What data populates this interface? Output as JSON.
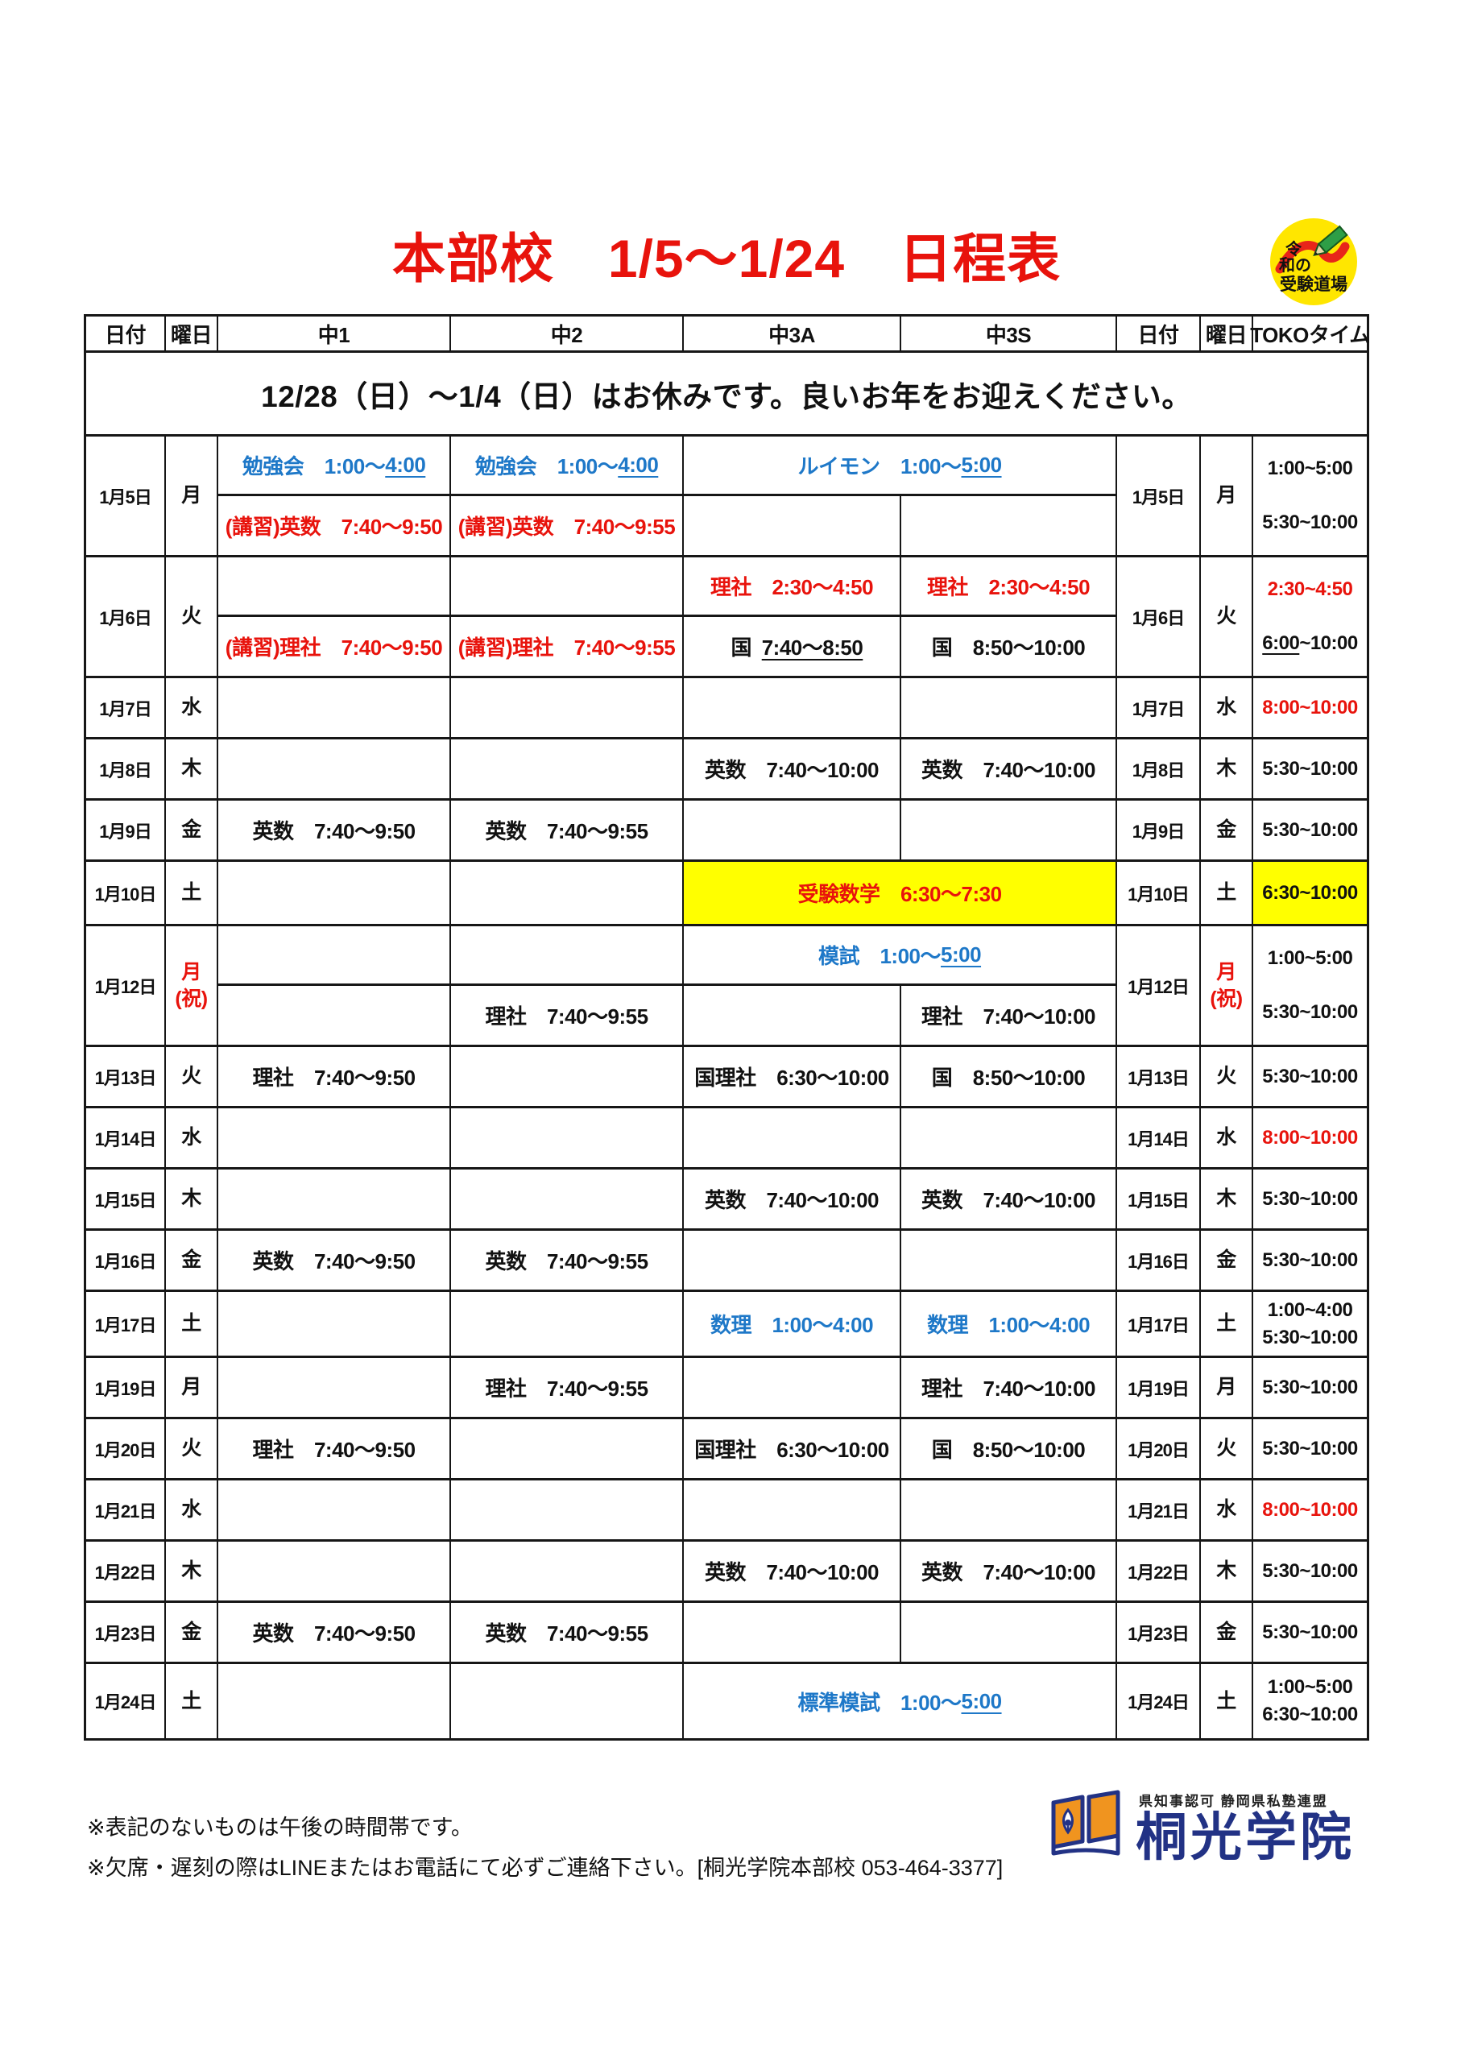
{
  "page_title": "本部校　1/5～1/24　日程表",
  "badge": {
    "line1": "令",
    "line2": "和の",
    "line3": "受験道場"
  },
  "table": {
    "headers": [
      "日付",
      "曜日",
      "中1",
      "中2",
      "中3A",
      "中3S",
      "日付",
      "曜日",
      "TOKOタイム"
    ],
    "notice": "12/28（日）～1/4（日）はお休みです。良いお年をお迎えください。",
    "rows": [
      {
        "date": "1月5日",
        "day": "月",
        "h": 150,
        "double": true,
        "top": {
          "c1": {
            "t": "勉強会　1:00～[4:00]",
            "c": "blue"
          },
          "c2": {
            "t": "勉強会　1:00～[4:00]",
            "c": "blue"
          },
          "m3": {
            "t": "ルイモン　1:00～[5:00]",
            "c": "blue"
          }
        },
        "bottom": {
          "c1": {
            "t": "(講習)英数　7:40～9:50",
            "c": "red"
          },
          "c2": {
            "t": "(講習)英数　7:40～9:55",
            "c": "red"
          },
          "c3a": null,
          "c3s": null
        },
        "toko": {
          "spread": true,
          "lines": [
            {
              "t": "1:00~5:00"
            },
            {
              "t": "5:30~10:00"
            }
          ]
        }
      },
      {
        "date": "1月6日",
        "day": "火",
        "h": 150,
        "double": true,
        "top": {
          "c1": null,
          "c2": null,
          "c3a": {
            "t": "理社　2:30～4:50",
            "c": "red"
          },
          "c3s": {
            "t": "理社　2:30～4:50",
            "c": "red"
          }
        },
        "bottom": {
          "c1": {
            "t": "(講習)理社　7:40～9:50",
            "c": "red"
          },
          "c2": {
            "t": "(講習)理社　7:40～9:55",
            "c": "red"
          },
          "c3a": {
            "t": "国　[7:40～8:50]"
          },
          "c3s": {
            "t": "国　8:50～10:00"
          }
        },
        "toko": {
          "spread": true,
          "lines": [
            {
              "t": "2:30~4:50",
              "c": "red"
            },
            {
              "t": "[6:00]~10:00"
            }
          ]
        }
      },
      {
        "date": "1月7日",
        "day": "水",
        "h": 76,
        "cells": {},
        "toko": {
          "lines": [
            {
              "t": "8:00~10:00",
              "c": "red"
            }
          ]
        }
      },
      {
        "date": "1月8日",
        "day": "木",
        "h": 76,
        "cells": {
          "c3a": {
            "t": "英数　7:40～10:00"
          },
          "c3s": {
            "t": "英数　7:40～10:00"
          }
        },
        "toko": {
          "lines": [
            {
              "t": "5:30~10:00"
            }
          ]
        }
      },
      {
        "date": "1月9日",
        "day": "金",
        "h": 76,
        "cells": {
          "c1": {
            "t": "英数　7:40～9:50"
          },
          "c2": {
            "t": "英数　7:40～9:55"
          }
        },
        "toko": {
          "lines": [
            {
              "t": "5:30~10:00"
            }
          ]
        }
      },
      {
        "date": "1月10日",
        "day": "土",
        "h": 80,
        "cells": {
          "m3": {
            "t": "受験数学　6:30～7:30",
            "c": "red",
            "bg": "yellow"
          }
        },
        "toko": {
          "bg": "yellow",
          "lines": [
            {
              "t": "6:30~10:00"
            }
          ]
        }
      },
      {
        "date": "1月12日",
        "day": "月",
        "dayNote": "(祝)",
        "dayRed": true,
        "h": 150,
        "double": true,
        "top": {
          "c1": null,
          "c2": null,
          "m3": {
            "t": "模試　1:00～[5:00]",
            "c": "blue"
          }
        },
        "bottom": {
          "c1": null,
          "c2": {
            "t": "理社　7:40～9:55"
          },
          "c3a": null,
          "c3s": {
            "t": "理社　7:40～10:00"
          }
        },
        "toko": {
          "spread": true,
          "lines": [
            {
              "t": "1:00~5:00"
            },
            {
              "t": "5:30~10:00"
            }
          ]
        }
      },
      {
        "date": "1月13日",
        "day": "火",
        "h": 76,
        "cells": {
          "c1": {
            "t": "理社　7:40～9:50"
          },
          "c3a": {
            "t": "国理社　6:30～10:00"
          },
          "c3s": {
            "t": "国　8:50～10:00"
          }
        },
        "toko": {
          "lines": [
            {
              "t": "5:30~10:00"
            }
          ]
        }
      },
      {
        "date": "1月14日",
        "day": "水",
        "h": 76,
        "cells": {},
        "toko": {
          "lines": [
            {
              "t": "8:00~10:00",
              "c": "red"
            }
          ]
        }
      },
      {
        "date": "1月15日",
        "day": "木",
        "h": 76,
        "cells": {
          "c3a": {
            "t": "英数　7:40～10:00"
          },
          "c3s": {
            "t": "英数　7:40～10:00"
          }
        },
        "toko": {
          "lines": [
            {
              "t": "5:30~10:00"
            }
          ]
        }
      },
      {
        "date": "1月16日",
        "day": "金",
        "h": 76,
        "cells": {
          "c1": {
            "t": "英数　7:40～9:50"
          },
          "c2": {
            "t": "英数　7:40～9:55"
          }
        },
        "toko": {
          "lines": [
            {
              "t": "5:30~10:00"
            }
          ]
        }
      },
      {
        "date": "1月17日",
        "day": "土",
        "h": 82,
        "cells": {
          "c3a": {
            "t": "数理　1:00～4:00",
            "c": "blue"
          },
          "c3s": {
            "t": "数理　1:00～4:00",
            "c": "blue"
          }
        },
        "toko": {
          "lines": [
            {
              "t": "1:00~4:00"
            },
            {
              "t": "5:30~10:00"
            }
          ]
        }
      },
      {
        "date": "1月19日",
        "day": "月",
        "h": 76,
        "cells": {
          "c2": {
            "t": "理社　7:40～9:55"
          },
          "c3s": {
            "t": "理社　7:40～10:00"
          }
        },
        "toko": {
          "lines": [
            {
              "t": "5:30~10:00"
            }
          ]
        }
      },
      {
        "date": "1月20日",
        "day": "火",
        "h": 76,
        "cells": {
          "c1": {
            "t": "理社　7:40～9:50"
          },
          "c3a": {
            "t": "国理社　6:30～10:00"
          },
          "c3s": {
            "t": "国　8:50～10:00"
          }
        },
        "toko": {
          "lines": [
            {
              "t": "5:30~10:00"
            }
          ]
        }
      },
      {
        "date": "1月21日",
        "day": "水",
        "h": 76,
        "cells": {},
        "toko": {
          "lines": [
            {
              "t": "8:00~10:00",
              "c": "red"
            }
          ]
        }
      },
      {
        "date": "1月22日",
        "day": "木",
        "h": 76,
        "cells": {
          "c3a": {
            "t": "英数　7:40～10:00"
          },
          "c3s": {
            "t": "英数　7:40～10:00"
          }
        },
        "toko": {
          "lines": [
            {
              "t": "5:30~10:00"
            }
          ]
        }
      },
      {
        "date": "1月23日",
        "day": "金",
        "h": 76,
        "cells": {
          "c1": {
            "t": "英数　7:40～9:50"
          },
          "c2": {
            "t": "英数　7:40～9:55"
          }
        },
        "toko": {
          "lines": [
            {
              "t": "5:30~10:00"
            }
          ]
        }
      },
      {
        "date": "1月24日",
        "day": "土",
        "h": 92,
        "cells": {
          "m3": {
            "t": "標準模試　1:00～[5:00]",
            "c": "blue"
          }
        },
        "toko": {
          "lines": [
            {
              "t": "1:00~5:00"
            },
            {
              "t": "6:30~10:00"
            }
          ]
        }
      }
    ]
  },
  "footer": {
    "note1": "※表記のないものは午後の時間帯です。",
    "note2": "※欠席・遅刻の際はLINEまたはお電話にて必ずご連絡下さい。[桐光学院本部校 053-464-3377]"
  },
  "logo": {
    "cert": "県知事認可 静岡県私塾連盟",
    "name": "桐光学院"
  },
  "colors": {
    "red": "#e8130c",
    "blue": "#1e78c8",
    "yellow": "#ffff00",
    "navy": "#223285",
    "orange": "#f0941f",
    "badge_yellow": "#ffe600"
  }
}
